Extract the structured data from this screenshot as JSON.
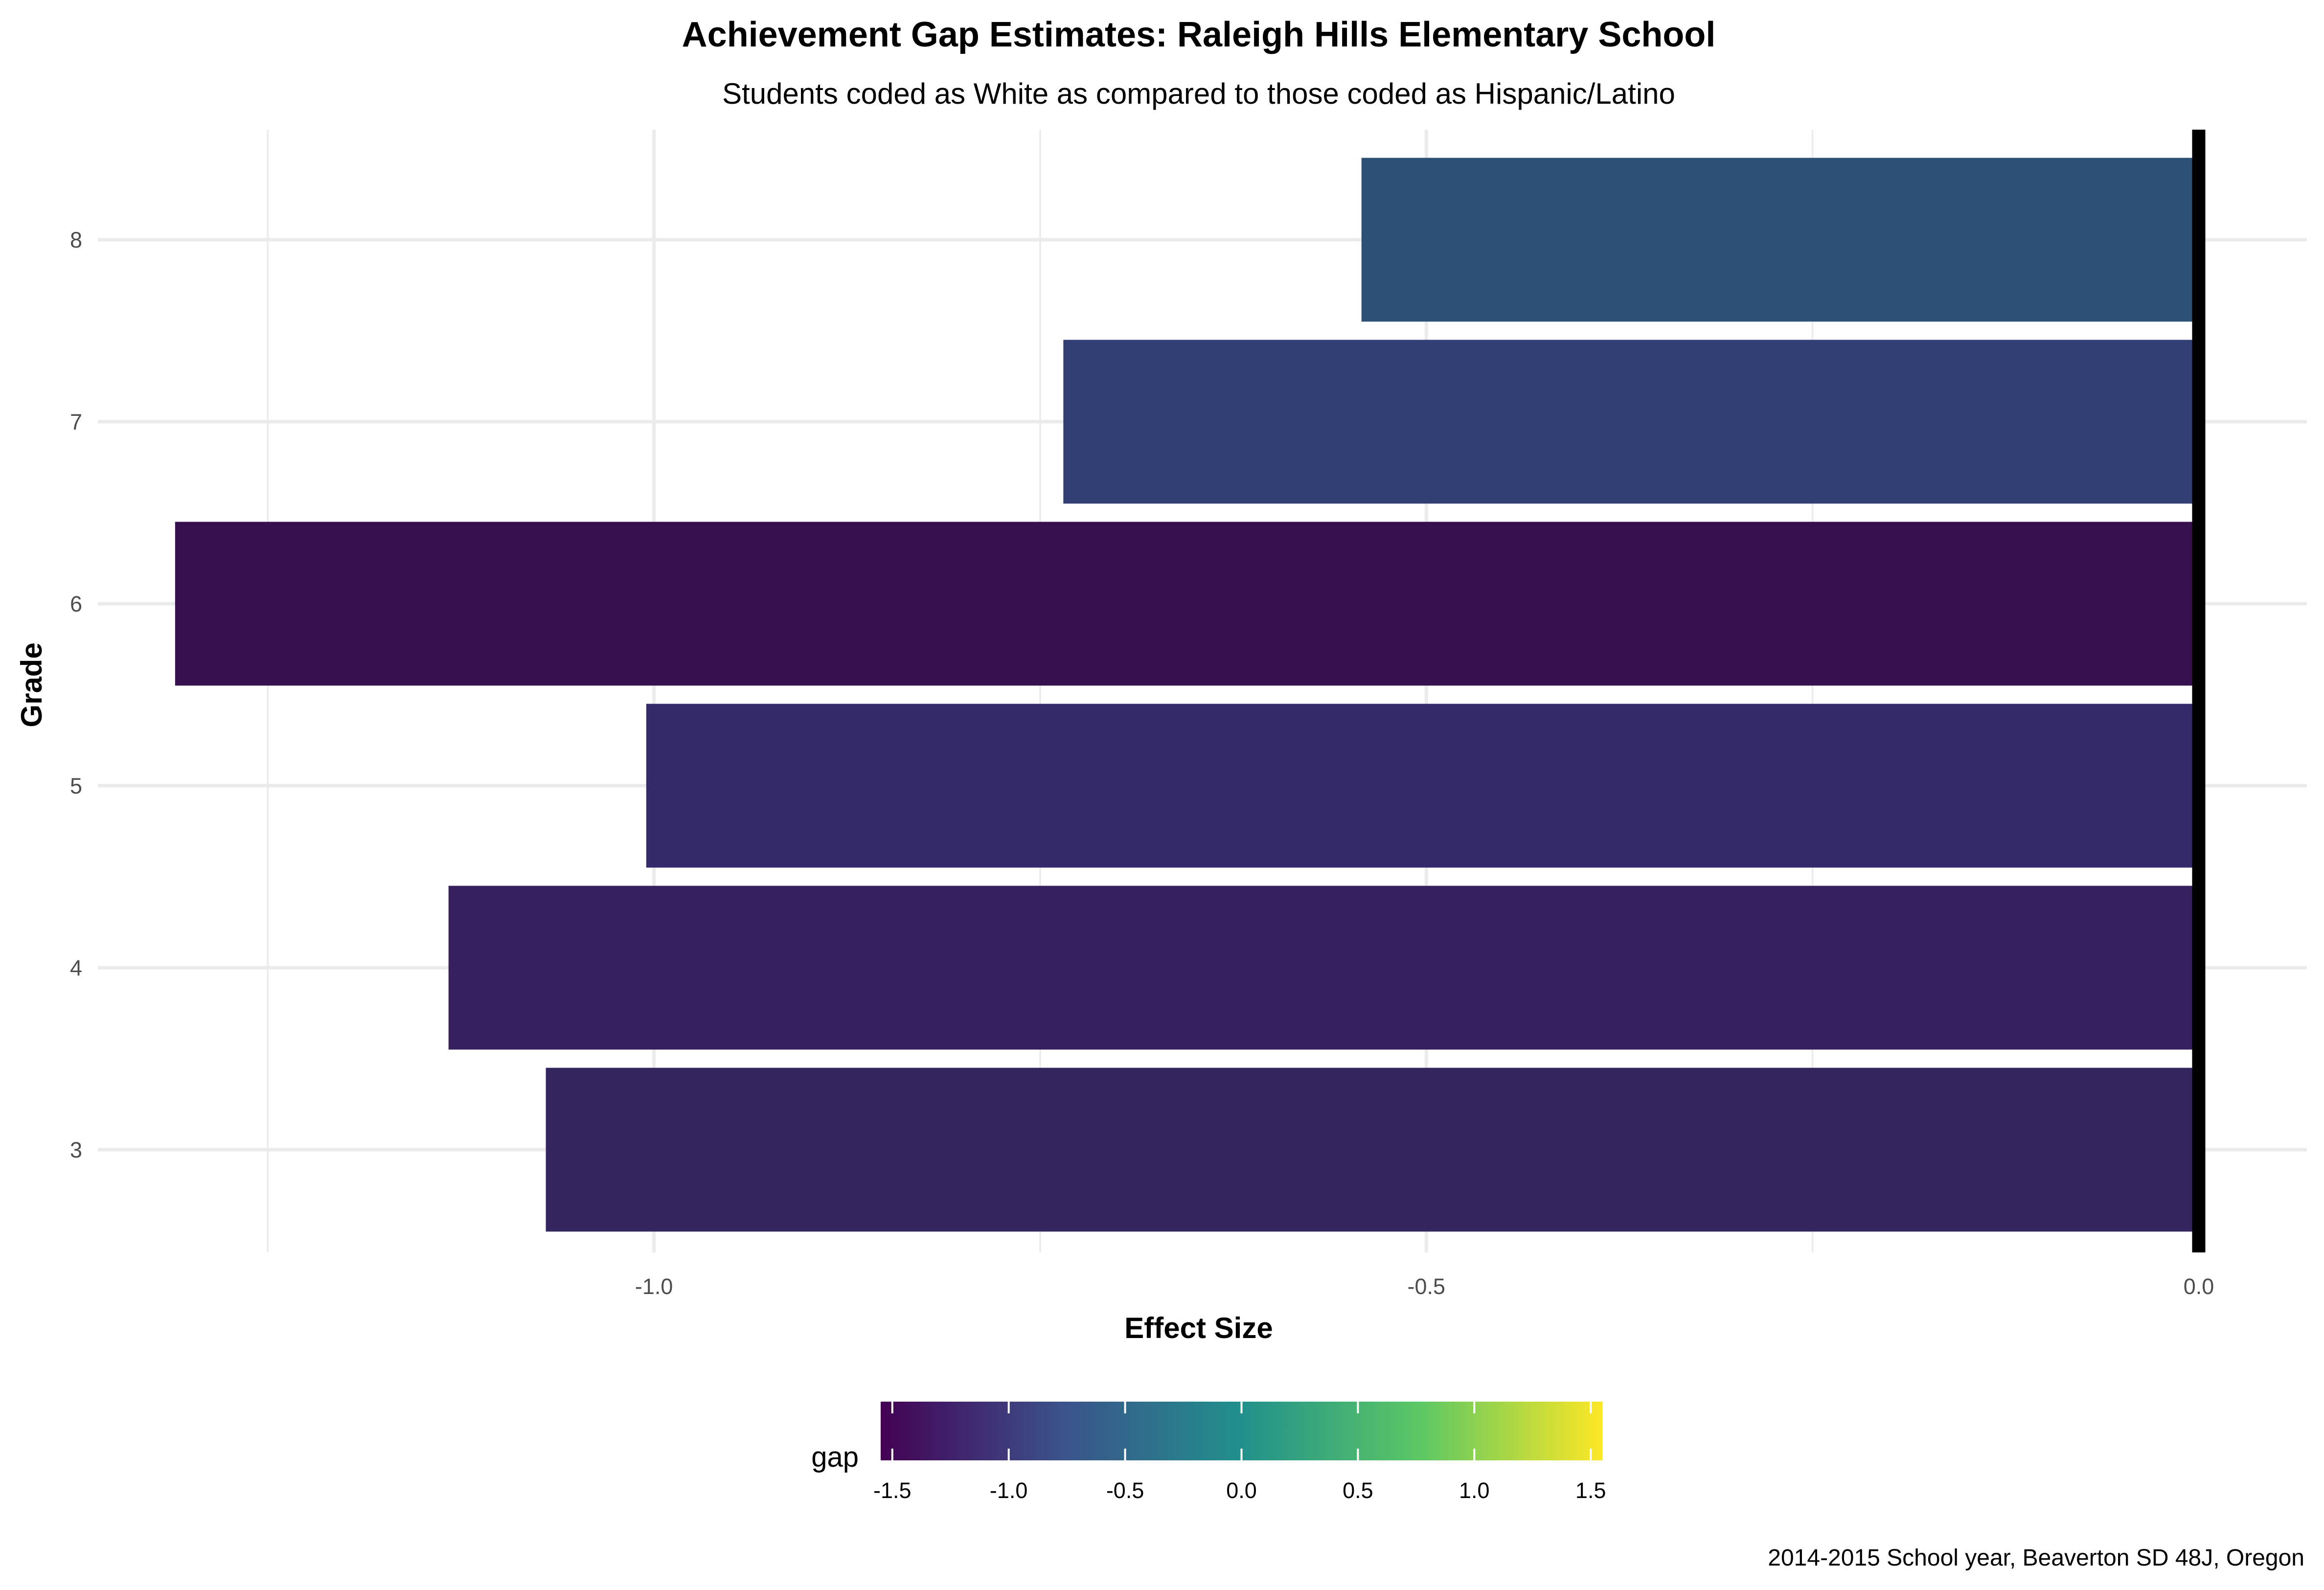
{
  "chart_data": {
    "type": "bar",
    "orientation": "horizontal",
    "title": "Achievement Gap Estimates: Raleigh Hills Elementary School",
    "subtitle": "Students coded as White as compared to those coded as Hispanic/Latino",
    "xlabel": "Effect Size",
    "ylabel": "Grade",
    "caption": "2014-2015 School year, Beaverton SD 48J, Oregon",
    "categories": [
      "3",
      "4",
      "5",
      "6",
      "7",
      "8"
    ],
    "values": [
      -1.07,
      -1.133,
      -1.005,
      -1.31,
      -0.735,
      -0.542
    ],
    "bar_colors": [
      "#34255f",
      "#36215e",
      "#342a6a",
      "#36104e",
      "#313f75",
      "#2c5076"
    ],
    "xlim": [
      -1.36,
      0.07
    ],
    "xticks": [
      -1.0,
      -0.5,
      0.0
    ],
    "xtick_labels": [
      "-1.0",
      "-0.5",
      "0.0"
    ],
    "grid": true,
    "reference_line": {
      "x": 0.0,
      "color": "#000000"
    },
    "legend": {
      "title": "gap",
      "type": "colorbar",
      "position": "bottom",
      "range": [
        -1.55,
        1.55
      ],
      "ticks": [
        -1.5,
        -1.0,
        -0.5,
        0.0,
        0.5,
        1.0,
        1.5
      ],
      "tick_labels": [
        "-1.5",
        "-1.0",
        "-0.5",
        "0.0",
        "0.5",
        "1.0",
        "1.5"
      ],
      "palette": [
        "#440154",
        "#3b528b",
        "#21908c",
        "#5dc863",
        "#fde725"
      ]
    }
  }
}
